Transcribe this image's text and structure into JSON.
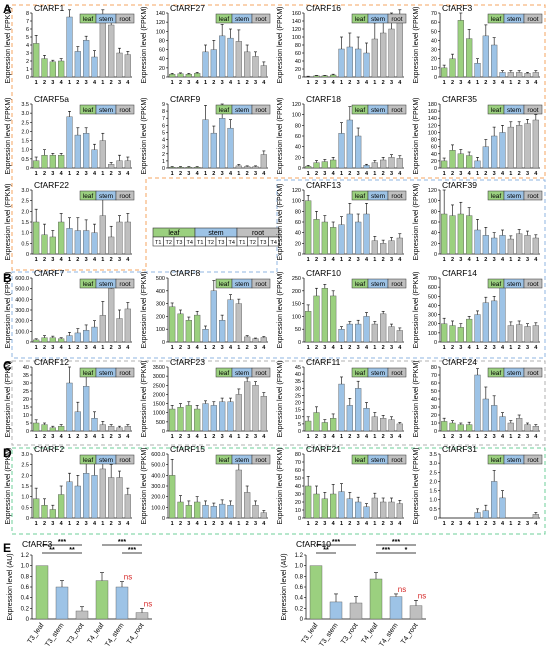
{
  "colors": {
    "leaf": "#9bd07f",
    "stem": "#9dc3e6",
    "root": "#bfbfbf",
    "orange_box": "#f4a460",
    "blue_box": "#8fb4e0",
    "green_box": "#6ccf9a",
    "gray_box": "#b0b0b0",
    "ns": "#d62828"
  },
  "panel_letters": [
    "A",
    "B",
    "C",
    "D",
    "E"
  ],
  "legend": [
    "leaf",
    "stem",
    "root"
  ],
  "ylabel": "Expression level (FPKM)",
  "ylabel_e": "Expression level (AU)",
  "tick_labels": [
    "1",
    "2",
    "3",
    "4"
  ],
  "key_table": {
    "groups": [
      "leaf",
      "stem",
      "root"
    ],
    "cells": [
      "T1",
      "T2",
      "T3",
      "T4",
      "T1",
      "T2",
      "T3",
      "T4",
      "T1",
      "T2",
      "T3",
      "T4"
    ]
  },
  "chart_data": [
    {
      "type": "bar",
      "title": "CfARF1",
      "yticks": [
        "0",
        "1",
        "2",
        "3",
        "4",
        "5",
        "6",
        "7",
        "8"
      ],
      "ylim": [
        0,
        8
      ],
      "values": [
        4.2,
        2.3,
        1.9,
        2.0,
        7.5,
        3.2,
        4.6,
        2.5,
        7.4,
        6.5,
        3.0,
        2.8
      ],
      "errors": [
        1.0,
        0.4,
        0.2,
        0.3,
        3.0,
        0.6,
        0.5,
        0.8,
        1.2,
        1.0,
        0.6,
        0.4
      ]
    },
    {
      "type": "bar",
      "title": "CfARF27",
      "yticks": [
        "0",
        "20",
        "40",
        "60",
        "80",
        "100",
        "120",
        "140"
      ],
      "ylim": [
        0,
        140
      ],
      "values": [
        6,
        7,
        6,
        8,
        55,
        60,
        90,
        85,
        78,
        55,
        45,
        25
      ],
      "errors": [
        2,
        2,
        2,
        2,
        15,
        20,
        25,
        20,
        25,
        15,
        10,
        8
      ]
    },
    {
      "type": "bar",
      "title": "CfARF16",
      "yticks": [
        "0",
        "20",
        "40",
        "60",
        "80",
        "100",
        "120",
        "140",
        "160"
      ],
      "ylim": [
        0,
        160
      ],
      "values": [
        1,
        3,
        3,
        5,
        70,
        75,
        70,
        60,
        95,
        110,
        120,
        140
      ],
      "errors": [
        1,
        1,
        1,
        2,
        30,
        35,
        30,
        25,
        40,
        35,
        40,
        45
      ]
    },
    {
      "type": "bar",
      "title": "CfARF3",
      "yticks": [
        "0",
        "10",
        "20",
        "30",
        "40",
        "50",
        "60",
        "70"
      ],
      "ylim": [
        0,
        70
      ],
      "values": [
        10,
        20,
        62,
        42,
        15,
        45,
        35,
        5,
        5,
        5,
        4,
        5
      ],
      "errors": [
        3,
        5,
        8,
        10,
        5,
        12,
        8,
        2,
        2,
        2,
        1,
        2
      ]
    },
    {
      "type": "bar",
      "title": "CfARF5a",
      "yticks": [
        "0",
        "0.5",
        "1.0",
        "1.5",
        "2.0",
        "2.5",
        "3.0",
        "3.5"
      ],
      "ylim": [
        0,
        3.5
      ],
      "values": [
        0.4,
        0.7,
        0.7,
        0.7,
        2.8,
        1.8,
        1.9,
        1.0,
        1.5,
        0.2,
        0.4,
        0.4
      ],
      "errors": [
        0.2,
        0.3,
        0.1,
        0.1,
        0.3,
        0.4,
        0.3,
        0.3,
        0.4,
        0.1,
        0.3,
        0.2
      ]
    },
    {
      "type": "bar",
      "title": "CfARF9",
      "yticks": [
        "0",
        "1",
        "2",
        "3",
        "4",
        "5",
        "6",
        "7",
        "8",
        "9"
      ],
      "ylim": [
        0,
        9
      ],
      "values": [
        0.1,
        0.1,
        0.1,
        0.1,
        6.8,
        4.9,
        7.0,
        5.6,
        0.3,
        0.2,
        0.2,
        1.9
      ],
      "errors": [
        0.1,
        0.1,
        0.1,
        0.1,
        2.0,
        1.0,
        2.0,
        1.2,
        0.2,
        0.1,
        0.1,
        0.5
      ]
    },
    {
      "type": "bar",
      "title": "CfARF18",
      "yticks": [
        "0",
        "20",
        "40",
        "60",
        "80",
        "100",
        "120"
      ],
      "ylim": [
        0,
        120
      ],
      "values": [
        3,
        10,
        12,
        15,
        65,
        90,
        60,
        5,
        10,
        15,
        20,
        18
      ],
      "errors": [
        2,
        4,
        4,
        5,
        20,
        25,
        15,
        2,
        4,
        5,
        5,
        5
      ]
    },
    {
      "type": "bar",
      "title": "CfARF35",
      "yticks": [
        "0",
        "20",
        "40",
        "60",
        "80",
        "100",
        "120",
        "140",
        "160",
        "180"
      ],
      "ylim": [
        0,
        180
      ],
      "values": [
        20,
        50,
        40,
        35,
        20,
        60,
        90,
        100,
        115,
        120,
        125,
        135
      ],
      "errors": [
        8,
        15,
        12,
        10,
        10,
        20,
        25,
        20,
        15,
        10,
        12,
        15
      ]
    },
    {
      "type": "bar",
      "title": "CfARF22",
      "yticks": [
        "0",
        "0.5",
        "1.0",
        "1.5",
        "2.0",
        "2.5",
        "3.0"
      ],
      "ylim": [
        0,
        3
      ],
      "values": [
        1.5,
        0.9,
        0.8,
        1.5,
        1.2,
        1.1,
        1.1,
        1.0,
        1.8,
        0.8,
        1.5,
        1.5
      ],
      "errors": [
        0.6,
        0.5,
        0.3,
        0.4,
        0.5,
        0.6,
        0.5,
        0.4,
        0.8,
        0.5,
        0.3,
        0.4
      ]
    },
    {
      "type": "bar",
      "title": "CfARF13",
      "yticks": [
        "0",
        "20",
        "40",
        "60",
        "80",
        "100",
        "120"
      ],
      "ylim": [
        0,
        120
      ],
      "values": [
        100,
        65,
        60,
        50,
        55,
        75,
        60,
        75,
        25,
        20,
        25,
        30
      ],
      "errors": [
        10,
        15,
        12,
        10,
        15,
        20,
        15,
        20,
        8,
        6,
        6,
        8
      ]
    },
    {
      "type": "bar",
      "title": "CfARF39",
      "yticks": [
        "0",
        "20",
        "40",
        "60",
        "80",
        "100",
        "120"
      ],
      "ylim": [
        0,
        120
      ],
      "values": [
        75,
        72,
        75,
        72,
        45,
        35,
        30,
        35,
        28,
        38,
        35,
        30
      ],
      "errors": [
        45,
        20,
        22,
        15,
        20,
        15,
        10,
        10,
        6,
        8,
        8,
        6
      ]
    },
    {
      "type": "bar",
      "title": "CfARF7",
      "yticks": [
        "0",
        "100.0",
        "200.0",
        "300.0",
        "400.0",
        "500.0",
        "600.0"
      ],
      "ylim": [
        0,
        600
      ],
      "values": [
        20,
        40,
        40,
        30,
        60,
        85,
        110,
        140,
        250,
        500,
        220,
        310
      ],
      "errors": [
        10,
        20,
        15,
        10,
        30,
        40,
        50,
        60,
        130,
        60,
        80,
        60
      ]
    },
    {
      "type": "bar",
      "title": "CfARF8",
      "yticks": [
        "0",
        "100",
        "200",
        "300",
        "400",
        "500"
      ],
      "ylim": [
        0,
        500
      ],
      "values": [
        275,
        220,
        170,
        210,
        100,
        400,
        170,
        330,
        300,
        40,
        25,
        35
      ],
      "errors": [
        30,
        30,
        25,
        30,
        25,
        80,
        40,
        40,
        35,
        10,
        6,
        8
      ]
    },
    {
      "type": "bar",
      "title": "CfARF10",
      "yticks": [
        "0",
        "50",
        "100",
        "150",
        "200",
        "250"
      ],
      "ylim": [
        0,
        250
      ],
      "values": [
        120,
        180,
        210,
        180,
        50,
        70,
        70,
        100,
        70,
        110,
        60,
        45
      ],
      "errors": [
        25,
        30,
        15,
        20,
        10,
        10,
        15,
        15,
        10,
        10,
        10,
        10
      ]
    },
    {
      "type": "bar",
      "title": "CfARF14",
      "yticks": [
        "0",
        "100",
        "200",
        "300",
        "400",
        "500",
        "600",
        "700"
      ],
      "ylim": [
        0,
        700
      ],
      "values": [
        200,
        180,
        160,
        250,
        300,
        430,
        450,
        600,
        180,
        190,
        170,
        180
      ],
      "errors": [
        60,
        50,
        40,
        30,
        40,
        60,
        50,
        50,
        40,
        40,
        30,
        30
      ]
    },
    {
      "type": "bar",
      "title": "CfARF12",
      "yticks": [
        "0",
        "5",
        "10",
        "15",
        "20",
        "25",
        "30",
        "35",
        "40"
      ],
      "ylim": [
        0,
        40
      ],
      "values": [
        5,
        4,
        2,
        3,
        30,
        12,
        28,
        8,
        4,
        3,
        2,
        3
      ],
      "errors": [
        2,
        1,
        1,
        1,
        10,
        6,
        10,
        4,
        2,
        1,
        1,
        1
      ]
    },
    {
      "type": "bar",
      "title": "CfARF23",
      "yticks": [
        "0",
        "500",
        "1000",
        "1500",
        "2000",
        "2500",
        "3000",
        "3500"
      ],
      "ylim": [
        0,
        3500
      ],
      "values": [
        1200,
        1300,
        1400,
        1200,
        1500,
        1400,
        1600,
        1600,
        2000,
        2700,
        2500,
        1900
      ],
      "errors": [
        200,
        200,
        200,
        200,
        150,
        200,
        200,
        200,
        300,
        200,
        200,
        200
      ]
    },
    {
      "type": "bar",
      "title": "CfARF11",
      "yticks": [
        "0",
        "5",
        "10",
        "15",
        "20",
        "25",
        "30",
        "35",
        "40",
        "45"
      ],
      "ylim": [
        0,
        45
      ],
      "values": [
        7,
        13,
        6,
        9,
        33,
        18,
        30,
        16,
        10,
        9,
        8,
        5
      ],
      "errors": [
        3,
        4,
        2,
        3,
        5,
        5,
        5,
        4,
        3,
        2,
        2,
        1
      ]
    },
    {
      "type": "bar",
      "title": "CfARF24",
      "yticks": [
        "0",
        "10",
        "20",
        "30",
        "40",
        "50",
        "60",
        "70",
        "80"
      ],
      "ylim": [
        0,
        80
      ],
      "values": [
        12,
        10,
        8,
        8,
        70,
        40,
        32,
        18,
        10,
        16,
        8,
        6
      ],
      "errors": [
        4,
        3,
        2,
        3,
        8,
        15,
        12,
        5,
        3,
        4,
        2,
        2
      ]
    },
    {
      "type": "bar",
      "title": "CfARF2",
      "yticks": [
        "0",
        "0.5",
        "1.0",
        "1.5",
        "2.0",
        "2.5",
        "3.0"
      ],
      "ylim": [
        0,
        3
      ],
      "values": [
        0.9,
        0.6,
        0.4,
        1.1,
        1.7,
        1.5,
        2.1,
        2.0,
        2.3,
        1.9,
        1.9,
        1.1
      ],
      "errors": [
        0.5,
        0.3,
        0.2,
        0.4,
        0.4,
        0.5,
        0.5,
        0.6,
        0.4,
        0.6,
        0.3,
        0.3
      ]
    },
    {
      "type": "bar",
      "title": "CfARF15",
      "yticks": [
        "0",
        "100.0",
        "200.0",
        "300.0",
        "400.0",
        "500.0",
        "600.0"
      ],
      "ylim": [
        0,
        600
      ],
      "values": [
        400,
        150,
        120,
        150,
        120,
        110,
        130,
        120,
        450,
        240,
        120,
        50
      ],
      "errors": [
        150,
        60,
        40,
        50,
        40,
        30,
        40,
        40,
        90,
        60,
        40,
        20
      ]
    },
    {
      "type": "bar",
      "title": "CfARF21",
      "yticks": [
        "0",
        "10",
        "20",
        "30",
        "40",
        "50",
        "60",
        "70",
        "80"
      ],
      "ylim": [
        0,
        80
      ],
      "values": [
        40,
        30,
        24,
        30,
        33,
        24,
        20,
        14,
        25,
        20,
        20,
        18
      ],
      "errors": [
        12,
        10,
        8,
        12,
        10,
        8,
        6,
        4,
        6,
        5,
        5,
        4
      ]
    },
    {
      "type": "bar",
      "title": "CfARF31",
      "yticks": [
        "0",
        "0.5",
        "1.0",
        "1.5",
        "2.0",
        "2.5",
        "3.0",
        "3.5"
      ],
      "ylim": [
        0,
        3.5
      ],
      "values": [
        0,
        0,
        0,
        0,
        0.3,
        0.4,
        2.0,
        1.1,
        0,
        0,
        0,
        0.2
      ],
      "errors": [
        0,
        0,
        0,
        0,
        0.2,
        0.3,
        0.6,
        0.4,
        0,
        0,
        0,
        0.1
      ]
    },
    {
      "type": "bar",
      "title": "CfARF3",
      "panel": "E",
      "ylabel": "Expression level (AU)",
      "yticks": [
        "0",
        "0.2",
        "0.4",
        "0.6",
        "0.8",
        "1.0",
        "1.2"
      ],
      "ylim": [
        0,
        1.2
      ],
      "categories": [
        "T3_leaf",
        "T3_stem",
        "T3_root",
        "T4_leaf",
        "T4_stem",
        "T4_root"
      ],
      "values": [
        1.0,
        0.6,
        0.15,
        0.72,
        0.6,
        0.12
      ],
      "errors": [
        0,
        0.12,
        0.08,
        0.15,
        0.1,
        0.08
      ],
      "significance": [
        {
          "from": 0,
          "to": 1,
          "label": "**"
        },
        {
          "from": 1,
          "to": 2,
          "label": "**"
        },
        {
          "from": 0,
          "to": 2,
          "label": "***"
        },
        {
          "from": 3,
          "to": 4,
          "label": "ns"
        },
        {
          "from": 4,
          "to": 5,
          "label": "***"
        },
        {
          "from": 3,
          "to": 5,
          "label": "***"
        }
      ],
      "ns_labels": [
        {
          "bar": 4,
          "label": "ns"
        },
        {
          "bar": 5,
          "label": "ns"
        }
      ]
    },
    {
      "type": "bar",
      "title": "CfARF10",
      "panel": "E",
      "ylabel": "Expression level (AU)",
      "yticks": [
        "0",
        "0.2",
        "0.4",
        "0.6",
        "0.8",
        "1.0",
        "1.2"
      ],
      "ylim": [
        0,
        1.2
      ],
      "categories": [
        "T3_leaf",
        "T3_stem",
        "T3_root",
        "T4_leaf",
        "T4_stem",
        "T4_root"
      ],
      "values": [
        1.0,
        0.32,
        0.3,
        0.75,
        0.42,
        0.25
      ],
      "errors": [
        0,
        0.15,
        0.12,
        0.12,
        0.05,
        0.1
      ],
      "significance": [
        {
          "from": 0,
          "to": 1,
          "label": "**"
        },
        {
          "from": 0,
          "to": 2,
          "label": "***"
        },
        {
          "from": 3,
          "to": 4,
          "label": "***"
        },
        {
          "from": 4,
          "to": 5,
          "label": "*"
        },
        {
          "from": 3,
          "to": 5,
          "label": "***"
        }
      ],
      "ns_labels": [
        {
          "bar": 4,
          "label": "ns"
        },
        {
          "bar": 5,
          "label": "ns"
        }
      ]
    }
  ]
}
